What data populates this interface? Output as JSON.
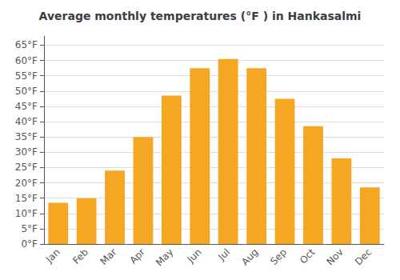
{
  "chart_data": {
    "type": "bar",
    "title": "Average monthly temperatures (°F ) in Hankasalmi",
    "categories": [
      "Jan",
      "Feb",
      "Mar",
      "Apr",
      "May",
      "Jun",
      "Jul",
      "Aug",
      "Sep",
      "Oct",
      "Nov",
      "Dec"
    ],
    "values": [
      13.5,
      15.0,
      24.0,
      35.0,
      48.5,
      57.5,
      60.5,
      57.5,
      47.5,
      38.5,
      28.0,
      18.5
    ],
    "color": "#F5A623",
    "ylim": [
      0,
      68
    ],
    "yticks": [
      {
        "value": 0,
        "label": "0°F"
      },
      {
        "value": 5,
        "label": "5°F"
      },
      {
        "value": 10,
        "label": "10°F"
      },
      {
        "value": 15,
        "label": "15°F"
      },
      {
        "value": 20,
        "label": "20°F"
      },
      {
        "value": 25,
        "label": "25°F"
      },
      {
        "value": 30,
        "label": "30°F"
      },
      {
        "value": 35,
        "label": "35°F"
      },
      {
        "value": 40,
        "label": "40°F"
      },
      {
        "value": 45,
        "label": "45°F"
      },
      {
        "value": 50,
        "label": "50°F"
      },
      {
        "value": 55,
        "label": "55°F"
      },
      {
        "value": 60,
        "label": "60°F"
      },
      {
        "value": 65,
        "label": "65°F"
      }
    ],
    "grid": true
  }
}
